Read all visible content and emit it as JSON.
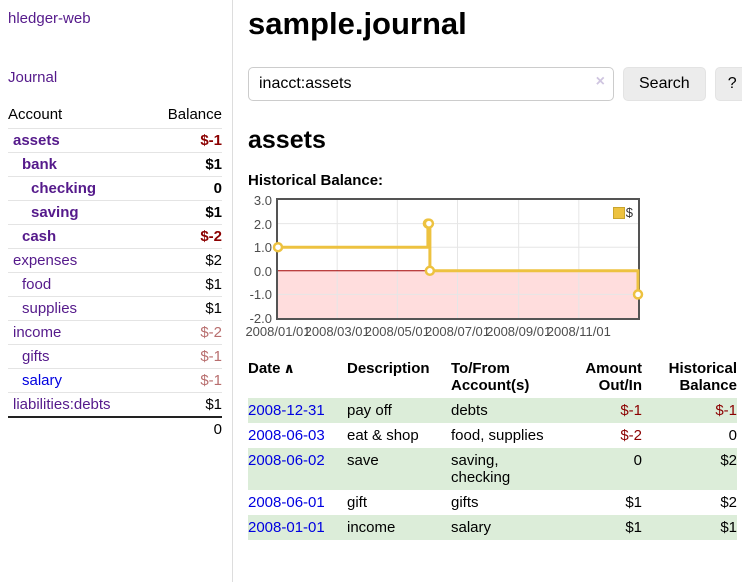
{
  "colors": {
    "purple": "#551a8b",
    "blue": "#0000e0",
    "neg": "#8b0000",
    "negsoft": "#b86e6e",
    "rowgreen": "#dcedd9"
  },
  "sidebar": {
    "brand": "hledger-web",
    "journal_link": "Journal",
    "accounts_table": {
      "headers": [
        "Account",
        "Balance"
      ],
      "rows": [
        {
          "name": "assets",
          "indent": 1,
          "bold": true,
          "balance": "$-1",
          "negative": "strong"
        },
        {
          "name": "bank",
          "indent": 2,
          "bold": true,
          "balance": "$1",
          "negative": "none"
        },
        {
          "name": "checking",
          "indent": 3,
          "bold": true,
          "balance": "0",
          "negative": "none"
        },
        {
          "name": "saving",
          "indent": 3,
          "bold": true,
          "balance": "$1",
          "negative": "none"
        },
        {
          "name": "cash",
          "indent": 2,
          "bold": true,
          "balance": "$-2",
          "negative": "strong"
        },
        {
          "name": "expenses",
          "indent": 1,
          "bold": false,
          "balance": "$2",
          "negative": "none"
        },
        {
          "name": "food",
          "indent": 2,
          "bold": false,
          "balance": "$1",
          "negative": "none"
        },
        {
          "name": "supplies",
          "indent": 2,
          "bold": false,
          "balance": "$1",
          "negative": "none"
        },
        {
          "name": "income",
          "indent": 1,
          "bold": false,
          "balance": "$-2",
          "negative": "soft"
        },
        {
          "name": "gifts",
          "indent": 2,
          "bold": false,
          "balance": "$-1",
          "negative": "soft"
        },
        {
          "name": "salary",
          "indent": 2,
          "bold": false,
          "balance": "$-1",
          "negative": "soft",
          "link_color": "blue"
        },
        {
          "name": "liabilities:debts",
          "indent": 1,
          "bold": false,
          "balance": "$1",
          "negative": "none"
        }
      ],
      "total": "0"
    }
  },
  "header": {
    "title": "sample.journal"
  },
  "search": {
    "value": "inacct:assets",
    "clear_icon": "×",
    "button": "Search",
    "help_button": "?"
  },
  "account_page": {
    "title": "assets",
    "chart_label": "Historical Balance:"
  },
  "chart_data": {
    "type": "line",
    "title": "Historical Balance",
    "legend": [
      {
        "label": "$",
        "color": "#edc240"
      }
    ],
    "series": [
      {
        "name": "$",
        "step": true,
        "points": [
          [
            "2008-01-01",
            1
          ],
          [
            "2008-06-01",
            2
          ],
          [
            "2008-06-02",
            2
          ],
          [
            "2008-06-03",
            0
          ],
          [
            "2008-12-31",
            -1
          ]
        ]
      }
    ],
    "x_ticks": [
      "2008/01/01",
      "2008/03/01",
      "2008/05/01",
      "2008/07/01",
      "2008/09/01",
      "2008/11/01"
    ],
    "y_ticks": [
      3.0,
      2.0,
      1.0,
      0.0,
      -1.0,
      -2.0
    ],
    "xlim": [
      "2008-01-01",
      "2008-12-31"
    ],
    "ylim": [
      -2,
      3
    ],
    "grid": true,
    "legend_position": "top-right",
    "line_color": "#edc240",
    "negative_fill": "#ffdddd",
    "zero_line_color": "#a40000"
  },
  "register": {
    "headers": {
      "date": "Date",
      "sort_icon": "∧",
      "description": "Description",
      "account": "To/From Account(s)",
      "amount": "Amount Out/In",
      "balance": "Historical Balance"
    },
    "rows": [
      {
        "date": "2008-12-31",
        "description": "pay off",
        "account": "debts",
        "amount": "$-1",
        "balance": "$-1",
        "amount_negative": true,
        "balance_negative": true,
        "shaded": true
      },
      {
        "date": "2008-06-03",
        "description": "eat & shop",
        "account": "food, supplies",
        "amount": "$-2",
        "balance": "0",
        "amount_negative": true,
        "balance_negative": false,
        "shaded": false
      },
      {
        "date": "2008-06-02",
        "description": "save",
        "account": "saving, checking",
        "amount": "0",
        "balance": "$2",
        "amount_negative": false,
        "balance_negative": false,
        "shaded": true
      },
      {
        "date": "2008-06-01",
        "description": "gift",
        "account": "gifts",
        "amount": "$1",
        "balance": "$2",
        "amount_negative": false,
        "balance_negative": false,
        "shaded": false
      },
      {
        "date": "2008-01-01",
        "description": "income",
        "account": "salary",
        "amount": "$1",
        "balance": "$1",
        "amount_negative": false,
        "balance_negative": false,
        "shaded": true
      }
    ]
  }
}
